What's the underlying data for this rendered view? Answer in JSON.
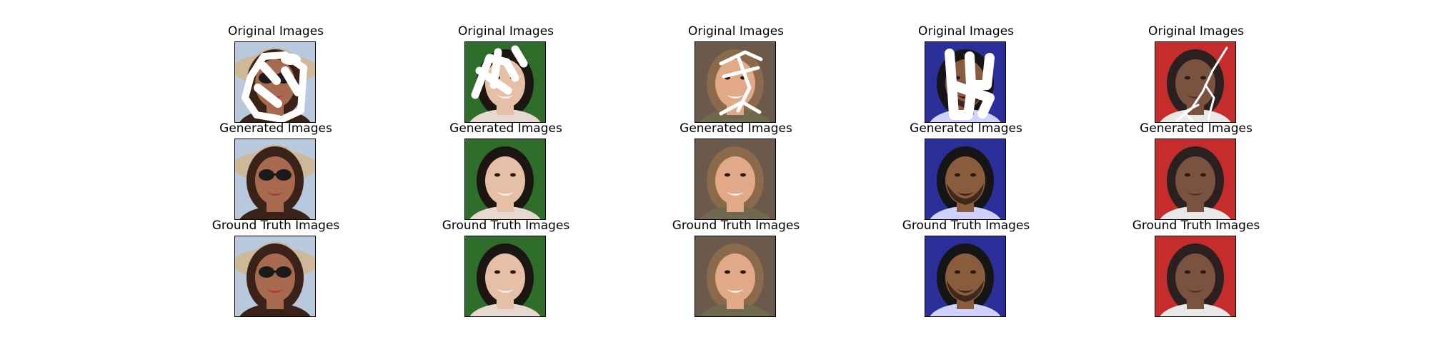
{
  "rows": [
    {
      "title": "Original Images",
      "kind": "masked"
    },
    {
      "title": "Generated Images",
      "kind": "generated"
    },
    {
      "title": "Ground Truth Images",
      "kind": "truth"
    }
  ],
  "samples": [
    {
      "bg": "#b9c9dd",
      "hat": "#cdb89a",
      "skin": "#a86a4f",
      "hair": "#3a2218",
      "glasses": true,
      "mouth": "#b2333d",
      "shirt": "#3a2218",
      "beard": false,
      "mask": "blobs"
    },
    {
      "bg": "#2f6e2a",
      "hat": "",
      "skin": "#e5c0a6",
      "hair": "#1b1612",
      "glasses": false,
      "mouth": "#f2f2f2",
      "shirt": "#e8d8d2",
      "beard": false,
      "mask": "strokes"
    },
    {
      "bg": "#6b5a4b",
      "hat": "",
      "skin": "#e1a987",
      "hair": "#8a6a4a",
      "glasses": false,
      "mouth": "#f4f4f4",
      "shirt": "#6f6a4e",
      "beard": false,
      "mask": "lines"
    },
    {
      "bg": "#2a2f9a",
      "hat": "",
      "skin": "#8a5c3e",
      "hair": "#151515",
      "glasses": false,
      "mouth": "#3a1f1a",
      "shirt": "#cfd2ff",
      "beard": true,
      "mask": "blocks"
    },
    {
      "bg": "#c72c2c",
      "hat": "",
      "skin": "#7a5240",
      "hair": "#2a2020",
      "glasses": false,
      "mouth": "#5a2f2a",
      "shirt": "#e8e8e8",
      "beard": false,
      "mask": "thin"
    }
  ]
}
